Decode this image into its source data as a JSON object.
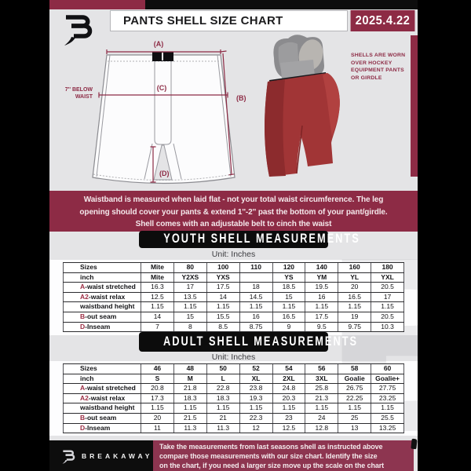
{
  "colors": {
    "maroon": "#8d2b45",
    "black_bar": "#0d0d0d",
    "shell_red": "#a13536",
    "page_bg": "#e4e4e6"
  },
  "header": {
    "title": "PANTS SHELL SIZE CHART",
    "date": "2025.4.22"
  },
  "diagram": {
    "label_a": "(A)",
    "label_b": "(B)",
    "label_c": "(C)",
    "label_d": "(D)",
    "waist_note": [
      "7'' BELOW",
      "WAIST"
    ],
    "photo_note": [
      "SHELLS ARE WORN",
      "OVER HOCKEY",
      "EQUIPMENT PANTS",
      "OR GIRDLE"
    ]
  },
  "banner": {
    "lines": [
      "Waistband is measured when laid flat - not your total waist circumference. The leg",
      "opening should cover your pants & extend 1''-2'' past the bottom of your pant/girdle.",
      "Shell comes with an adjustable belt to cinch the waist"
    ]
  },
  "youth": {
    "heading": "YOUTH SHELL MEASUREMENTS",
    "unit": "Unit: Inches",
    "rows": [
      {
        "label_prefix": "",
        "label": "Sizes",
        "values": [
          "Mite",
          "80",
          "100",
          "110",
          "120",
          "140",
          "160",
          "180"
        ]
      },
      {
        "label_prefix": "",
        "label": "inch",
        "values": [
          "Mite",
          "Y2XS",
          "YXS",
          "",
          "YS",
          "YM",
          "YL",
          "YXL"
        ]
      },
      {
        "label_prefix": "A",
        "label": "-waist stretched",
        "values": [
          "16.3",
          "17",
          "17.5",
          "18",
          "18.5",
          "19.5",
          "20",
          "20.5"
        ]
      },
      {
        "label_prefix": "A2",
        "label": "-waist relax",
        "values": [
          "12.5",
          "13.5",
          "14",
          "14.5",
          "15",
          "16",
          "16.5",
          "17"
        ]
      },
      {
        "label_prefix": "",
        "label": "waistband height",
        "values": [
          "1.15",
          "1.15",
          "1.15",
          "1.15",
          "1.15",
          "1.15",
          "1.15",
          "1.15"
        ]
      },
      {
        "label_prefix": "B",
        "label": "-out seam",
        "values": [
          "14",
          "15",
          "15.5",
          "16",
          "16.5",
          "17.5",
          "19",
          "20.5"
        ]
      },
      {
        "label_prefix": "D",
        "label": "-Inseam",
        "values": [
          "7",
          "8",
          "8.5",
          "8.75",
          "9",
          "9.5",
          "9.75",
          "10.3"
        ]
      }
    ]
  },
  "adult": {
    "heading": "ADULT SHELL MEASUREMENTS",
    "unit": "Unit: Inches",
    "rows": [
      {
        "label_prefix": "",
        "label": "Sizes",
        "values": [
          "46",
          "48",
          "50",
          "52",
          "54",
          "56",
          "58",
          "60"
        ]
      },
      {
        "label_prefix": "",
        "label": "inch",
        "values": [
          "S",
          "M",
          "L",
          "XL",
          "2XL",
          "3XL",
          "Goalie",
          "Goalie+"
        ]
      },
      {
        "label_prefix": "A",
        "label": "-waist stretched",
        "values": [
          "20.8",
          "21.8",
          "22.8",
          "23.8",
          "24.8",
          "25.8",
          "26.75",
          "27.75"
        ]
      },
      {
        "label_prefix": "A2",
        "label": "-waist relax",
        "values": [
          "17.3",
          "18.3",
          "18.3",
          "19.3",
          "20.3",
          "21.3",
          "22.25",
          "23.25"
        ]
      },
      {
        "label_prefix": "",
        "label": "waistband height",
        "values": [
          "1.15",
          "1.15",
          "1.15",
          "1.15",
          "1.15",
          "1.15",
          "1.15",
          "1.15"
        ]
      },
      {
        "label_prefix": "B",
        "label": "-out seam",
        "values": [
          "20",
          "21.5",
          "21",
          "22.3",
          "23",
          "24",
          "25",
          "25.5"
        ]
      },
      {
        "label_prefix": "D",
        "label": "-Inseam",
        "values": [
          "11",
          "11.3",
          "11.3",
          "12",
          "12.5",
          "12.8",
          "13",
          "13.25"
        ]
      }
    ]
  },
  "footer": {
    "brand": "BREAKAWAY",
    "lines": [
      "Take the measurements from last seasons shell as instructed above",
      "compare those measurements  with our size chart. Identify the size",
      "on the chart, if you need a larger size move up the scale on the chart"
    ]
  }
}
